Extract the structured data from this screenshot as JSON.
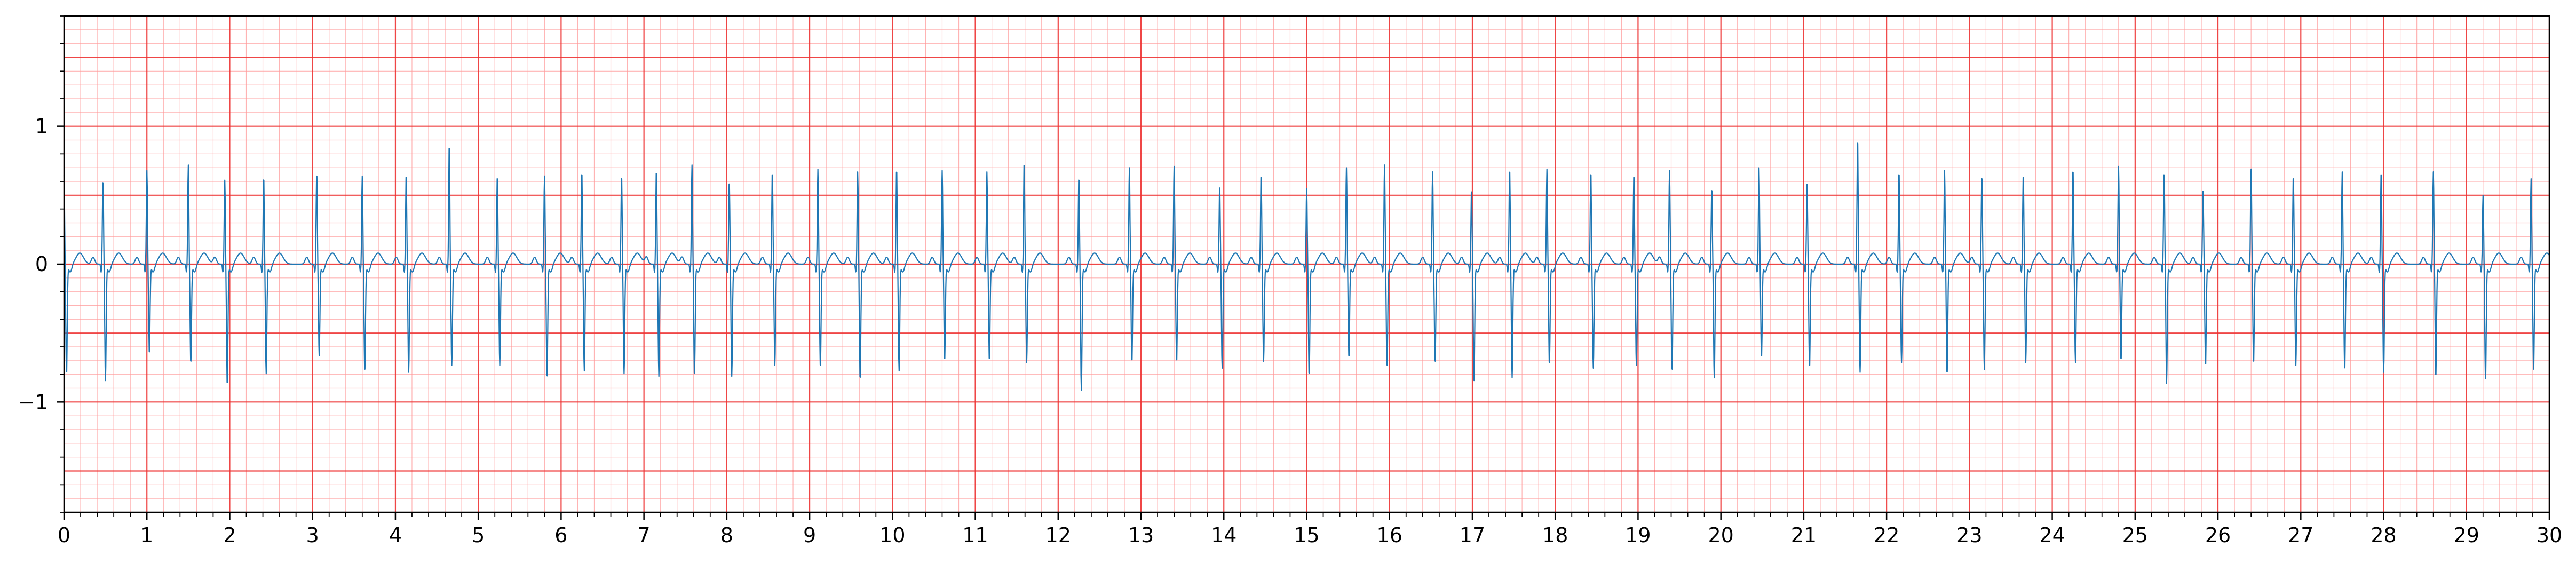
{
  "chart_data": {
    "type": "line",
    "title": "",
    "xlabel": "",
    "ylabel": "",
    "xlim": [
      0,
      30
    ],
    "ylim": [
      -1.8,
      1.8
    ],
    "x_ticks": [
      0,
      1,
      2,
      3,
      4,
      5,
      6,
      7,
      8,
      9,
      10,
      11,
      12,
      13,
      14,
      15,
      16,
      17,
      18,
      19,
      20,
      21,
      22,
      23,
      24,
      25,
      26,
      27,
      28,
      29,
      30
    ],
    "x_tick_labels": [
      "0",
      "1",
      "2",
      "3",
      "4",
      "5",
      "6",
      "7",
      "8",
      "9",
      "10",
      "11",
      "12",
      "13",
      "14",
      "15",
      "16",
      "17",
      "18",
      "19",
      "20",
      "21",
      "22",
      "23",
      "24",
      "25",
      "26",
      "27",
      "28",
      "29",
      "30"
    ],
    "y_ticks": [
      -1,
      0,
      1
    ],
    "y_tick_labels": [
      "−1",
      "0",
      "1"
    ],
    "grid": true,
    "grid_style": "ECG paper: major lines every 1 s and 0.5 mV (red), minor lines every 0.2 s and 0.1 mV (pink)",
    "legend": "none",
    "series": [
      {
        "color": "#1f77b4",
        "beat_times": [
          0.0,
          0.47,
          1.0,
          1.5,
          1.94,
          2.41,
          3.05,
          3.6,
          4.13,
          4.65,
          5.23,
          5.8,
          6.25,
          6.73,
          7.15,
          7.58,
          8.03,
          8.55,
          9.1,
          9.58,
          10.05,
          10.6,
          11.14,
          11.59,
          12.25,
          12.86,
          13.4,
          13.95,
          14.45,
          15.0,
          15.48,
          15.94,
          16.52,
          16.99,
          17.45,
          17.9,
          18.43,
          18.95,
          19.38,
          19.89,
          20.46,
          21.04,
          21.65,
          22.15,
          22.7,
          23.15,
          23.65,
          24.25,
          24.8,
          25.35,
          25.82,
          26.4,
          26.91,
          27.5,
          27.97,
          28.6,
          29.2,
          29.78
        ],
        "r_amplitudes": [
          0.65,
          0.62,
          0.68,
          0.72,
          0.61,
          0.64,
          0.67,
          0.64,
          0.66,
          0.88,
          0.65,
          0.64,
          0.68,
          0.65,
          0.69,
          0.72,
          0.61,
          0.68,
          0.69,
          0.67,
          0.7,
          0.68,
          0.67,
          0.75,
          0.64,
          0.7,
          0.71,
          0.58,
          0.66,
          0.55,
          0.7,
          0.72,
          0.67,
          0.55,
          0.7,
          0.69,
          0.68,
          0.66,
          0.68,
          0.56,
          0.7,
          0.58,
          0.92,
          0.68,
          0.68,
          0.65,
          0.66,
          0.7,
          0.71,
          0.68,
          0.53,
          0.69,
          0.65,
          0.67,
          0.68,
          0.67,
          0.5,
          0.62
        ],
        "s_amplitudes": [
          -0.8,
          -0.84,
          -0.65,
          -0.72,
          -0.88,
          -0.79,
          -0.66,
          -0.78,
          -0.78,
          -0.73,
          -0.73,
          -0.83,
          -0.77,
          -0.79,
          -0.81,
          -0.81,
          -0.81,
          -0.73,
          -0.75,
          -0.84,
          -0.77,
          -0.7,
          -0.7,
          -0.71,
          -0.91,
          -0.71,
          -0.71,
          -0.75,
          -0.7,
          -0.81,
          -0.68,
          -0.75,
          -0.72,
          -0.84,
          -0.82,
          -0.73,
          -0.75,
          -0.73,
          -0.78,
          -0.82,
          -0.68,
          -0.75,
          -0.78,
          -0.71,
          -0.8,
          -0.76,
          -0.71,
          -0.71,
          -0.7,
          -0.86,
          -0.74,
          -0.72,
          -0.73,
          -0.77,
          -0.78,
          -0.82,
          -0.85,
          -0.78
        ],
        "baseline": 0.0,
        "t_wave_amplitude": 0.08,
        "samples_per_second": 250
      }
    ]
  }
}
